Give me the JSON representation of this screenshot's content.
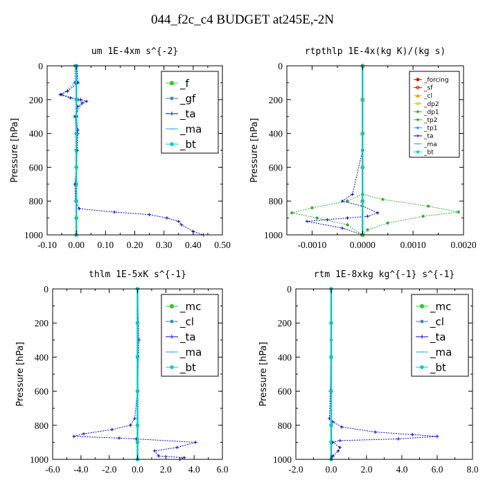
{
  "title": "044_f2c_c4  BUDGET at245E,-2N",
  "chart_data": [
    {
      "type": "line",
      "title": "um   1E-4xm s^{-2}",
      "ylabel": "Pressure [hPa]",
      "xlim": [
        -0.1,
        0.5
      ],
      "ylim": [
        1000,
        0
      ],
      "xticks": [
        -0.1,
        0.0,
        0.1,
        0.2,
        0.3,
        0.4,
        0.5
      ],
      "xtick_labels": [
        "-0.10",
        "0.00",
        "0.10",
        "0.20",
        "0.30",
        "0.40",
        "0.50"
      ],
      "yticks": [
        0,
        200,
        400,
        600,
        800,
        1000
      ],
      "ytick_labels": [
        "0",
        "200",
        "400",
        "600",
        "800",
        "1000"
      ],
      "legend_position": "top-right",
      "legend_size": "large",
      "series": [
        {
          "name": "_f",
          "color": "#33cc33",
          "marker": "circle",
          "x": [
            0.0,
            0.0,
            0.0,
            0.0,
            0.0,
            0.0,
            0.0,
            0.0,
            0.0,
            0.0,
            0.0
          ],
          "y": [
            0,
            100,
            200,
            300,
            400,
            500,
            600,
            700,
            800,
            900,
            1000
          ]
        },
        {
          "name": "_gf",
          "color": "#1f77b4",
          "marker": "star",
          "x": [
            -0.005,
            -0.005,
            -0.05,
            0.005,
            0.02,
            -0.005,
            0.0,
            0.0,
            0.0,
            0.0,
            0.0
          ],
          "y": [
            0,
            100,
            170,
            200,
            220,
            300,
            400,
            600,
            800,
            900,
            1000
          ]
        },
        {
          "name": "_ta",
          "color": "#0000cc",
          "marker": "plus",
          "x": [
            0.002,
            0.006,
            -0.03,
            -0.055,
            -0.02,
            0.015,
            0.035,
            0.005,
            0.0,
            0.005,
            0.005,
            0.003,
            0.0,
            -0.005,
            -0.003,
            0.01,
            0.13,
            0.25,
            0.31,
            0.35,
            0.36,
            0.4,
            0.435
          ],
          "y": [
            0,
            100,
            150,
            170,
            190,
            200,
            210,
            240,
            300,
            380,
            400,
            500,
            600,
            700,
            800,
            845,
            865,
            880,
            900,
            920,
            940,
            980,
            1000
          ]
        },
        {
          "name": "_ma",
          "color": "#3399ff",
          "marker": "dash",
          "x": [
            0.0,
            0.0,
            0.0,
            0.0,
            0.0,
            0.0,
            0.0
          ],
          "y": [
            0,
            200,
            400,
            600,
            800,
            900,
            1000
          ]
        },
        {
          "name": "_bt",
          "color": "#00cccc",
          "marker": "diamond",
          "x": [
            0.0,
            0.0,
            0.0,
            0.0,
            0.0,
            0.0,
            0.0
          ],
          "y": [
            0,
            200,
            400,
            600,
            800,
            900,
            1000
          ]
        }
      ]
    },
    {
      "type": "line",
      "title": "rtpthlp   1E-4x(kg K)/(kg s)",
      "ylabel": "Pressure [hPa]",
      "xlim": [
        -0.0015,
        0.002
      ],
      "ylim": [
        1000,
        0
      ],
      "xticks": [
        -0.001,
        0.0,
        0.001,
        0.002
      ],
      "xtick_labels": [
        "-0.0010",
        "0.0000",
        "0.0010",
        "0.0020"
      ],
      "yticks": [
        0,
        200,
        400,
        600,
        800,
        1000
      ],
      "ytick_labels": [
        "0",
        "200",
        "400",
        "600",
        "800",
        "1000"
      ],
      "legend_position": "top-right",
      "legend_size": "small",
      "series": [
        {
          "name": "_forcing",
          "color": "#dd0000",
          "marker": "circle",
          "x": [
            0,
            0,
            0,
            0,
            0,
            0
          ],
          "y": [
            0,
            200,
            400,
            600,
            800,
            1000
          ]
        },
        {
          "name": "_sf",
          "color": "#dd0000",
          "marker": "circle-open",
          "x": [
            0,
            0,
            0,
            0,
            0,
            0
          ],
          "y": [
            0,
            200,
            400,
            600,
            800,
            1000
          ]
        },
        {
          "name": "_cl",
          "color": "#ff9900",
          "marker": "triangle",
          "x": [
            0,
            0,
            0,
            0,
            0,
            0
          ],
          "y": [
            0,
            200,
            400,
            600,
            800,
            1000
          ]
        },
        {
          "name": "_dp2",
          "color": "#cccc00",
          "marker": "circle-open",
          "x": [
            0,
            0,
            0,
            0,
            0,
            0
          ],
          "y": [
            0,
            200,
            400,
            600,
            800,
            1000
          ]
        },
        {
          "name": "_dp1",
          "color": "#33aa33",
          "marker": "star",
          "x": [
            0.0,
            0.0,
            0.0,
            0.0,
            -0.0003,
            -0.001,
            -0.0014,
            -0.0009,
            -0.0003,
            0.0,
            0.0
          ],
          "y": [
            0,
            200,
            500,
            760,
            800,
            840,
            870,
            900,
            940,
            1000,
            1000
          ]
        },
        {
          "name": "_tp2",
          "color": "#33aa33",
          "marker": "star",
          "x": [
            0.0,
            0.0,
            0.0,
            0.0,
            0.0004,
            0.0013,
            0.0019,
            0.0012,
            0.0005,
            0.0001,
            0.0
          ],
          "y": [
            0,
            200,
            500,
            760,
            790,
            830,
            865,
            890,
            930,
            970,
            1000
          ]
        },
        {
          "name": "_tp1",
          "color": "#3399ff",
          "marker": "star",
          "x": [
            0,
            0,
            0,
            0,
            0,
            0
          ],
          "y": [
            0,
            200,
            400,
            600,
            800,
            1000
          ]
        },
        {
          "name": "_ta",
          "color": "#0000cc",
          "marker": "plus",
          "x": [
            0.0,
            0.0,
            0.0,
            -0.0002,
            -0.0004,
            0.0,
            0.0003,
            0.0001,
            -0.0003,
            -0.0007,
            -0.0011,
            -0.0004,
            0.0
          ],
          "y": [
            0,
            200,
            500,
            760,
            800,
            830,
            870,
            890,
            900,
            910,
            920,
            960,
            1000
          ]
        },
        {
          "name": "_ma",
          "color": "#3399ff",
          "marker": "dash",
          "x": [
            0,
            0,
            0,
            0,
            0,
            0
          ],
          "y": [
            0,
            200,
            400,
            600,
            800,
            1000
          ]
        },
        {
          "name": "_bt",
          "color": "#00cccc",
          "marker": "diamond",
          "x": [
            0,
            0,
            0,
            0,
            0,
            0
          ],
          "y": [
            0,
            200,
            400,
            600,
            800,
            1000
          ]
        }
      ]
    },
    {
      "type": "line",
      "title": "thlm   1E-5xK s^{-1}",
      "ylabel": "Pressure [hPa]",
      "xlim": [
        -6.0,
        6.0
      ],
      "ylim": [
        1000,
        0
      ],
      "xticks": [
        -6.0,
        -4.0,
        -2.0,
        0.0,
        2.0,
        4.0,
        6.0
      ],
      "xtick_labels": [
        "-6.0",
        "-4.0",
        "-2.0",
        "0.0",
        "2.0",
        "4.0",
        "6.0"
      ],
      "yticks": [
        0,
        200,
        400,
        600,
        800,
        1000
      ],
      "ytick_labels": [
        "0",
        "200",
        "400",
        "600",
        "800",
        "1000"
      ],
      "legend_position": "top-right",
      "legend_size": "large",
      "series": [
        {
          "name": "_mc",
          "color": "#33cc33",
          "marker": "circle",
          "x": [
            0.0,
            0.0,
            0.0,
            0.0,
            0.0,
            0.0,
            0.0
          ],
          "y": [
            0,
            200,
            400,
            600,
            800,
            900,
            1000
          ]
        },
        {
          "name": "_cl",
          "color": "#1f77b4",
          "marker": "star",
          "x": [
            0,
            0,
            0,
            0,
            0,
            0
          ],
          "y": [
            0,
            200,
            400,
            600,
            800,
            1000
          ]
        },
        {
          "name": "_ta",
          "color": "#0000cc",
          "marker": "plus",
          "x": [
            0.0,
            0.1,
            0.0,
            -0.2,
            -0.5,
            -1.8,
            -3.8,
            -4.5,
            -1.3,
            -0.1,
            4.1,
            2.8,
            1.2,
            1.5,
            3.3,
            3.0
          ],
          "y": [
            0,
            300,
            600,
            760,
            800,
            825,
            850,
            865,
            875,
            880,
            900,
            930,
            950,
            980,
            990,
            1000
          ]
        },
        {
          "name": "_ma",
          "color": "#3399ff",
          "marker": "dash",
          "x": [
            0,
            0,
            0,
            0,
            0,
            0
          ],
          "y": [
            0,
            200,
            400,
            600,
            800,
            1000
          ]
        },
        {
          "name": "_bt",
          "color": "#00cccc",
          "marker": "diamond",
          "x": [
            0,
            0,
            0,
            0,
            0,
            0
          ],
          "y": [
            0,
            200,
            400,
            600,
            800,
            1000
          ]
        }
      ]
    },
    {
      "type": "line",
      "title": "rtm   1E-8xkg kg^{-1} s^{-1}",
      "ylabel": "Pressure [hPa]",
      "xlim": [
        -2.0,
        8.0
      ],
      "ylim": [
        1000,
        0
      ],
      "xticks": [
        -2.0,
        0.0,
        2.0,
        4.0,
        6.0,
        8.0
      ],
      "xtick_labels": [
        "-2.0",
        "0.0",
        "2.0",
        "4.0",
        "6.0",
        "8.0"
      ],
      "yticks": [
        0,
        200,
        400,
        600,
        800,
        1000
      ],
      "ytick_labels": [
        "0",
        "200",
        "400",
        "600",
        "800",
        "1000"
      ],
      "legend_position": "top-right",
      "legend_size": "large",
      "series": [
        {
          "name": "_mc",
          "color": "#33cc33",
          "marker": "circle",
          "x": [
            0.0,
            0.0,
            0.0,
            0.0,
            0.0,
            0.0,
            0.0
          ],
          "y": [
            0,
            200,
            400,
            600,
            800,
            900,
            1000
          ]
        },
        {
          "name": "_cl",
          "color": "#1f77b4",
          "marker": "star",
          "x": [
            0,
            0,
            0,
            0,
            0,
            0
          ],
          "y": [
            0,
            200,
            400,
            600,
            800,
            1000
          ]
        },
        {
          "name": "_ta",
          "color": "#0000cc",
          "marker": "plus",
          "x": [
            0.0,
            0.0,
            -0.05,
            -0.1,
            0.1,
            0.6,
            2.5,
            4.6,
            6.0,
            3.8,
            0.5,
            0.1,
            0.5,
            0.4,
            0.1,
            0.0
          ],
          "y": [
            0,
            300,
            600,
            760,
            780,
            810,
            840,
            855,
            865,
            880,
            890,
            900,
            930,
            950,
            980,
            1000
          ]
        },
        {
          "name": "_ma",
          "color": "#3399ff",
          "marker": "dash",
          "x": [
            0,
            0,
            0,
            0,
            0,
            0
          ],
          "y": [
            0,
            200,
            400,
            600,
            800,
            1000
          ]
        },
        {
          "name": "_bt",
          "color": "#00cccc",
          "marker": "diamond",
          "x": [
            0,
            0,
            0,
            0,
            0,
            0
          ],
          "y": [
            0,
            200,
            400,
            600,
            800,
            1000
          ]
        }
      ]
    }
  ]
}
